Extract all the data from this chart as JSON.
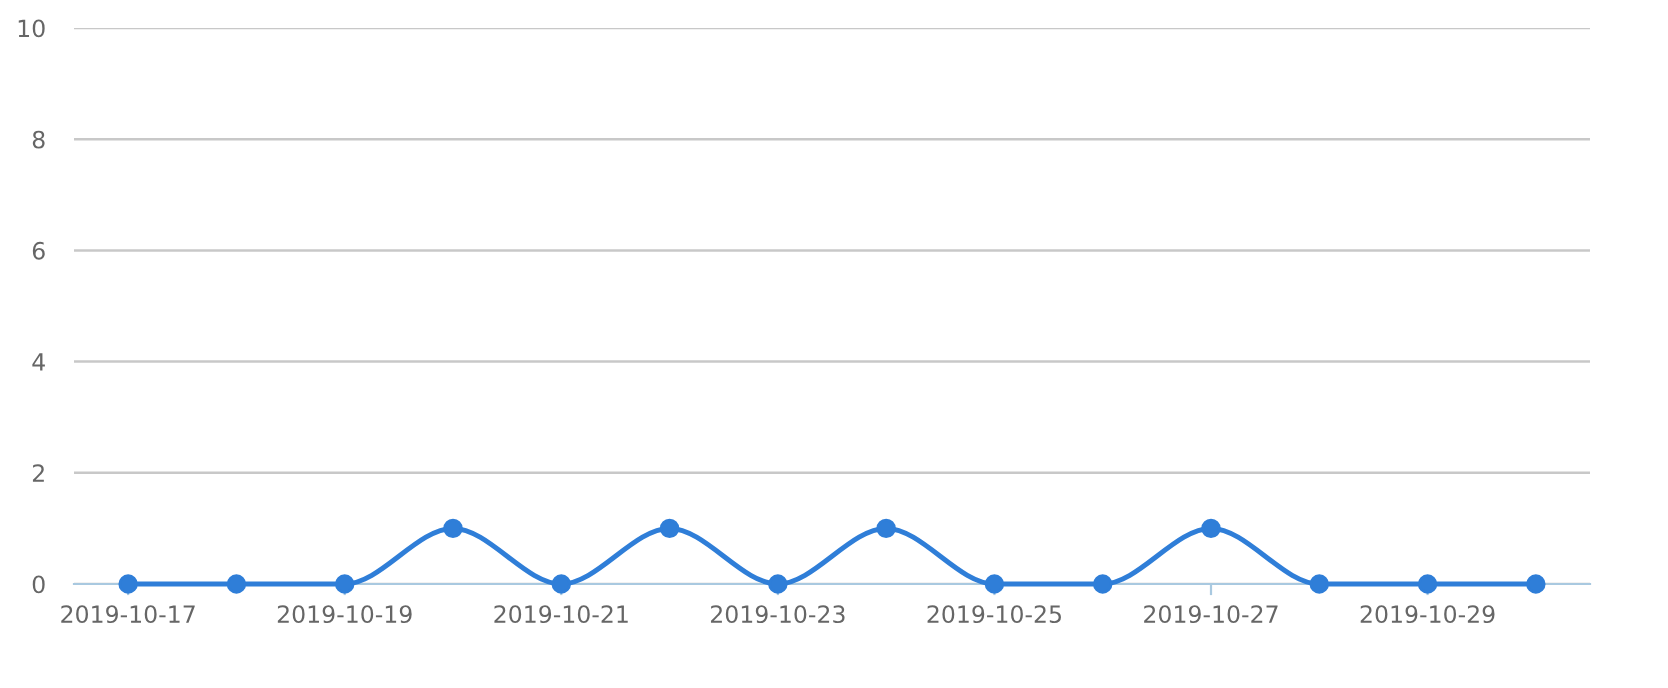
{
  "chart_data": {
    "type": "line",
    "categories": [
      "2019-10-17",
      null,
      "2019-10-19",
      null,
      "2019-10-21",
      null,
      "2019-10-23",
      null,
      "2019-10-25",
      null,
      "2019-10-27",
      null,
      "2019-10-29",
      null
    ],
    "series": [
      {
        "color": "#2f7ed8",
        "values": [
          0,
          0,
          0,
          1,
          0,
          1,
          0,
          1,
          0,
          0,
          1,
          0,
          0,
          0
        ]
      }
    ],
    "ylim": [
      0,
      10
    ],
    "yticks": [
      0,
      2,
      4,
      6,
      8,
      10
    ],
    "grid": "y",
    "marker": "circle",
    "line_style": "solid",
    "legend": false
  }
}
